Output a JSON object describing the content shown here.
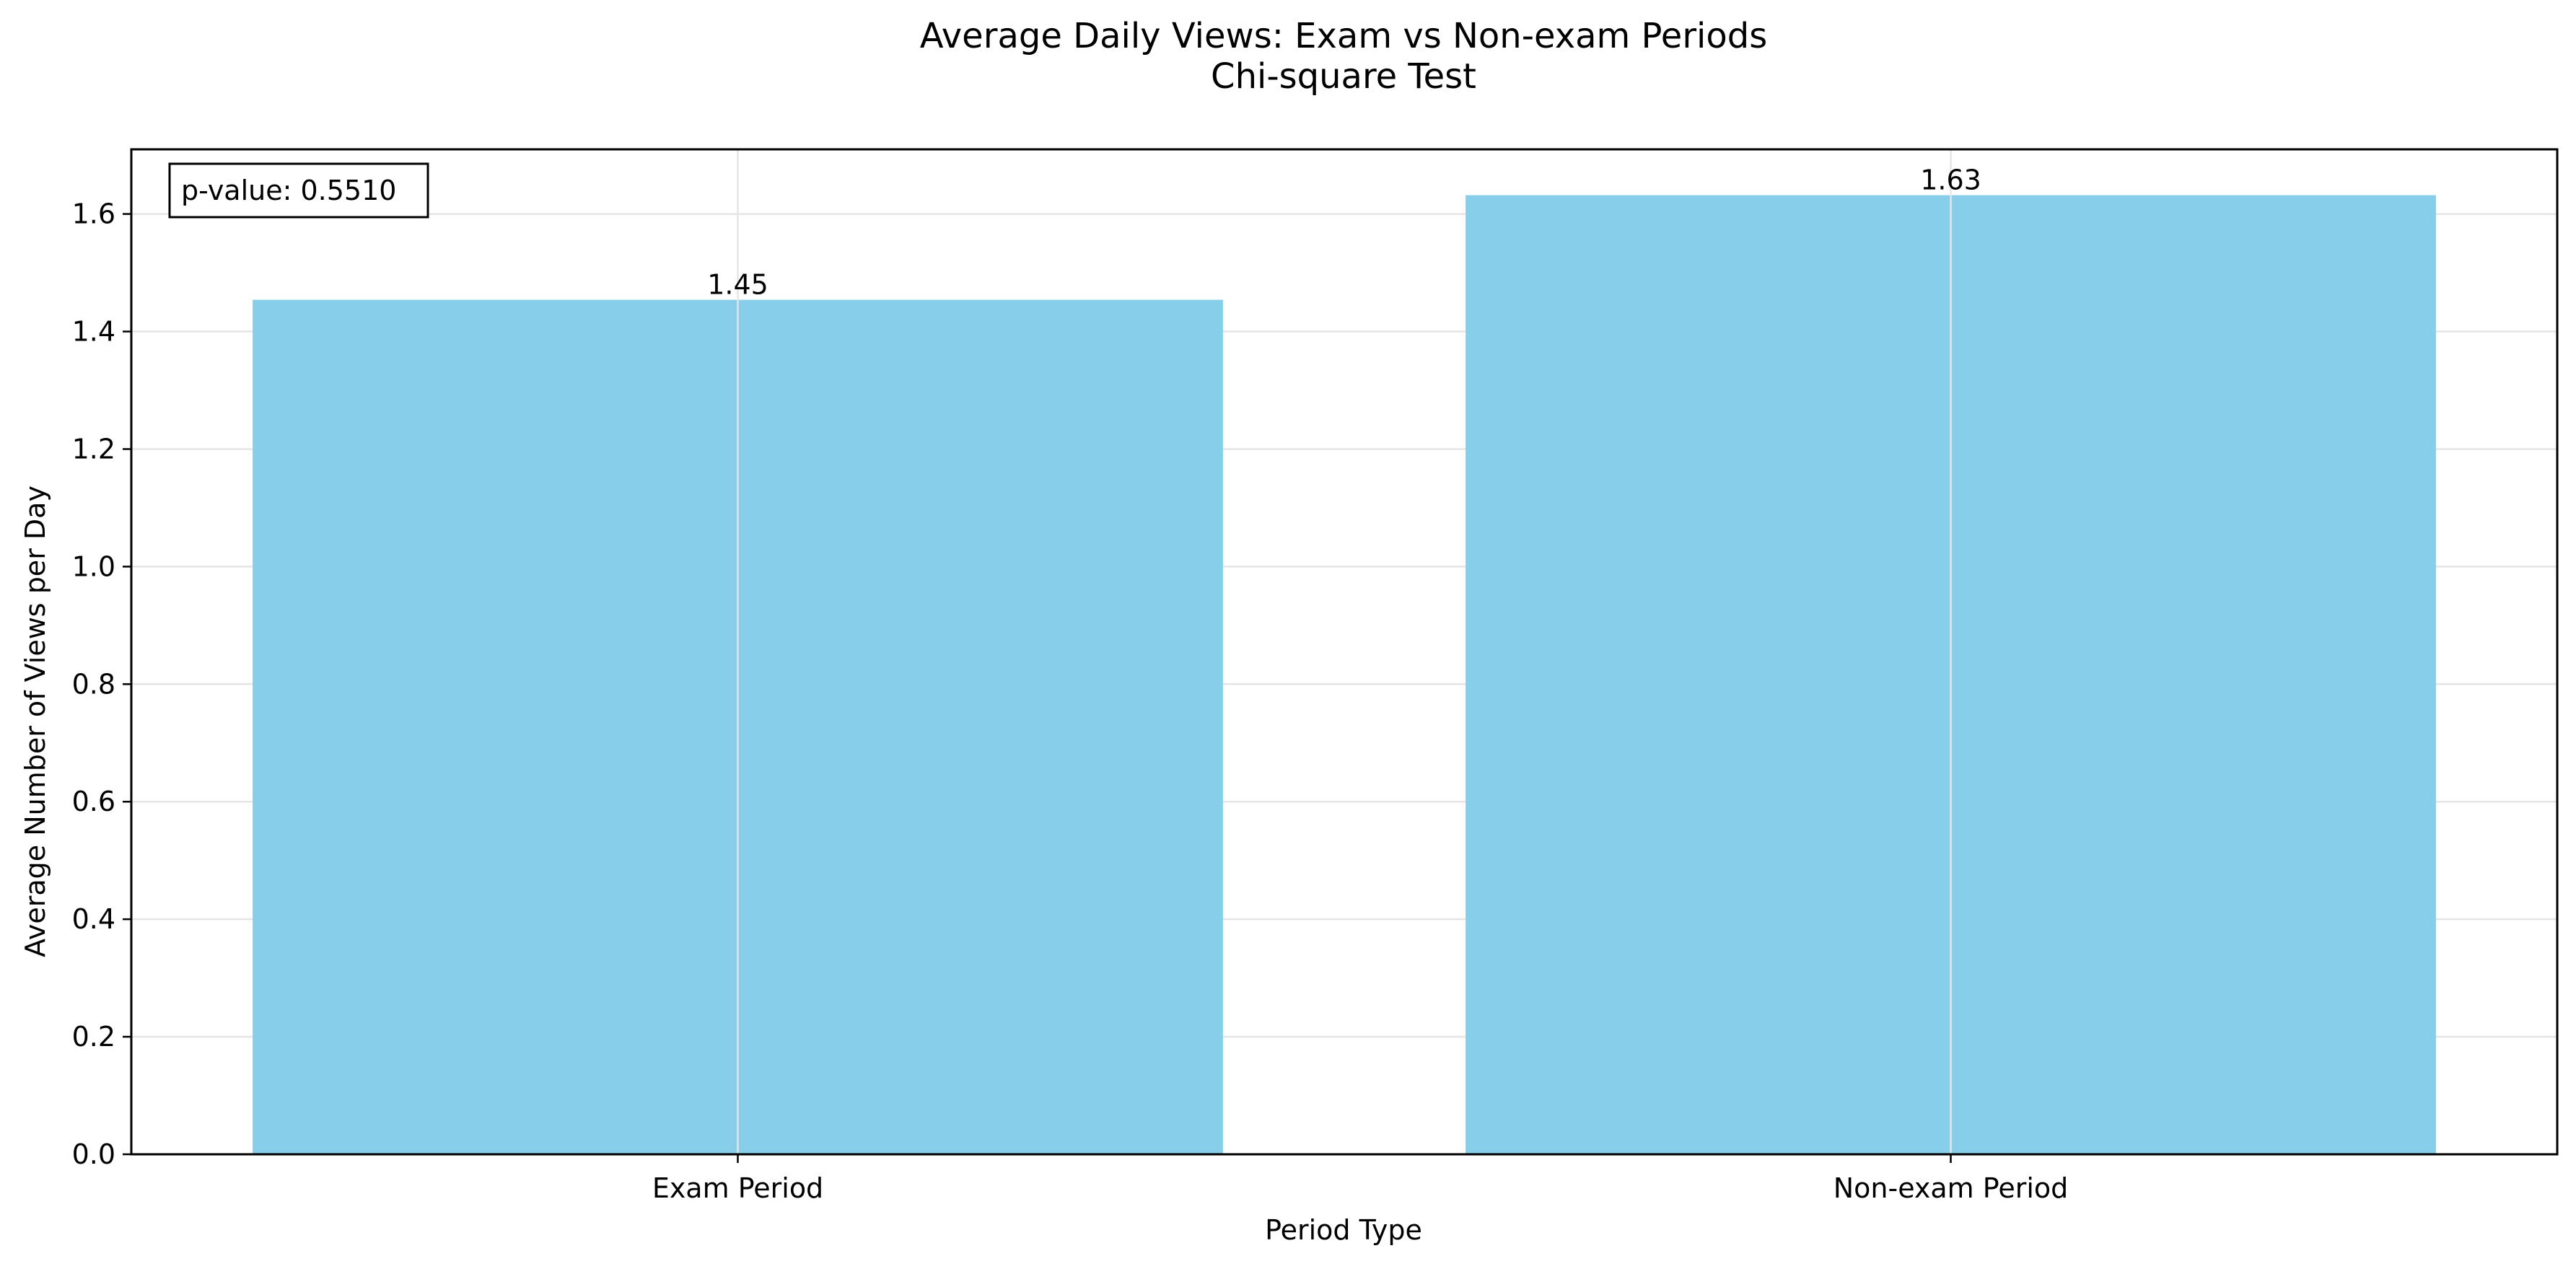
{
  "chart_data": {
    "type": "bar",
    "title": "Average Daily Views: Exam vs Non-exam Periods",
    "subtitle": "Chi-square Test",
    "xlabel": "Period Type",
    "ylabel": "Average Number of Views per Day",
    "categories": [
      "Exam Period",
      "Non-exam Period"
    ],
    "values": [
      1.454,
      1.632
    ],
    "data_labels": [
      "1.45",
      "1.63"
    ],
    "ylim": [
      0,
      1.71
    ],
    "yticks": [
      0.0,
      0.2,
      0.4,
      0.6,
      0.8,
      1.0,
      1.2,
      1.4,
      1.6
    ],
    "ytick_labels": [
      "0.0",
      "0.2",
      "0.4",
      "0.6",
      "0.8",
      "1.0",
      "1.2",
      "1.4",
      "1.6"
    ],
    "grid": true,
    "legend": false,
    "annotation": "p-value: 0.5510",
    "bar_color": "#87CEEB",
    "grid_color": "#E5E5E5"
  }
}
